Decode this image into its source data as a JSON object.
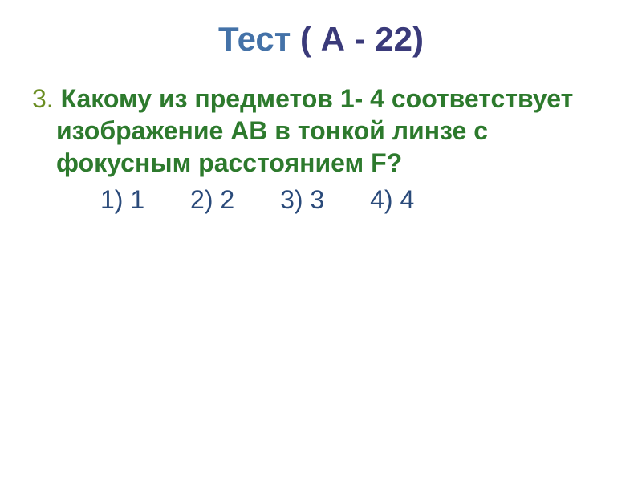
{
  "title": {
    "word": "Тест",
    "rest": " ( А - 22)",
    "word_color": "#4472a8",
    "rest_color": "#3a3a7a",
    "fontsize": 42
  },
  "question": {
    "number": "3.",
    "text": "  Какому из предметов 1- 4 соответствует изображение АВ в тонкой линзе с фокусным расстоянием F?",
    "number_color": "#6b8e23",
    "text_color": "#2d7a2d",
    "fontsize": 32
  },
  "answers": {
    "items": [
      "1) 1",
      "2) 2",
      "3) 3",
      "4) 4"
    ],
    "color": "#2a4a7a",
    "fontsize": 32
  },
  "background_color": "#ffffff"
}
